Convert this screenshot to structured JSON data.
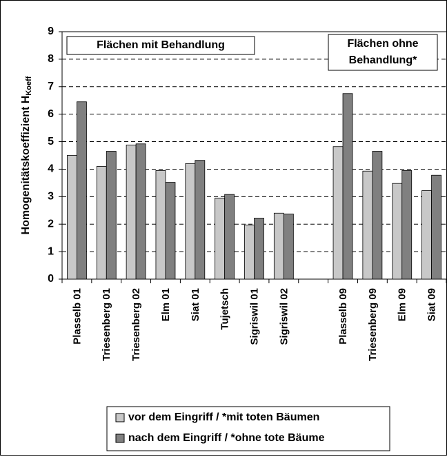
{
  "chart_data": {
    "type": "bar",
    "y_label": "Homogenitätskoeffizient H",
    "y_label_sub": "Koeff",
    "annotations": [
      [
        "Flächen mit Behandlung"
      ],
      [
        "Flächen ohne",
        "Behandlung*"
      ]
    ],
    "categories": [
      "Plasselb 01",
      "Triesenberg 01",
      "Triesenberg 02",
      "Elm 01",
      "Siat 01",
      "Tujetsch",
      "Sigriswil 01",
      "Sigriswil 02",
      null,
      "Plasselb 09",
      "Triesenberg 09",
      "Elm 09",
      "Siat 09"
    ],
    "series": [
      {
        "name": "vor dem Eingriff / *mit toten Bäumen",
        "color": "#c8c8c8",
        "values": [
          4.5,
          4.1,
          4.88,
          3.95,
          4.2,
          2.95,
          1.97,
          2.4,
          null,
          4.82,
          3.93,
          3.48,
          3.22
        ]
      },
      {
        "name": "nach dem Eingriff / *ohne tote Bäume",
        "color": "#808080",
        "values": [
          6.45,
          4.65,
          4.92,
          3.52,
          4.32,
          3.08,
          2.22,
          2.37,
          null,
          6.75,
          4.65,
          3.95,
          3.78
        ]
      }
    ],
    "ylim": [
      0,
      9
    ],
    "yticks": [
      0,
      1,
      2,
      3,
      4,
      5,
      6,
      7,
      8,
      9
    ],
    "grid": true
  }
}
